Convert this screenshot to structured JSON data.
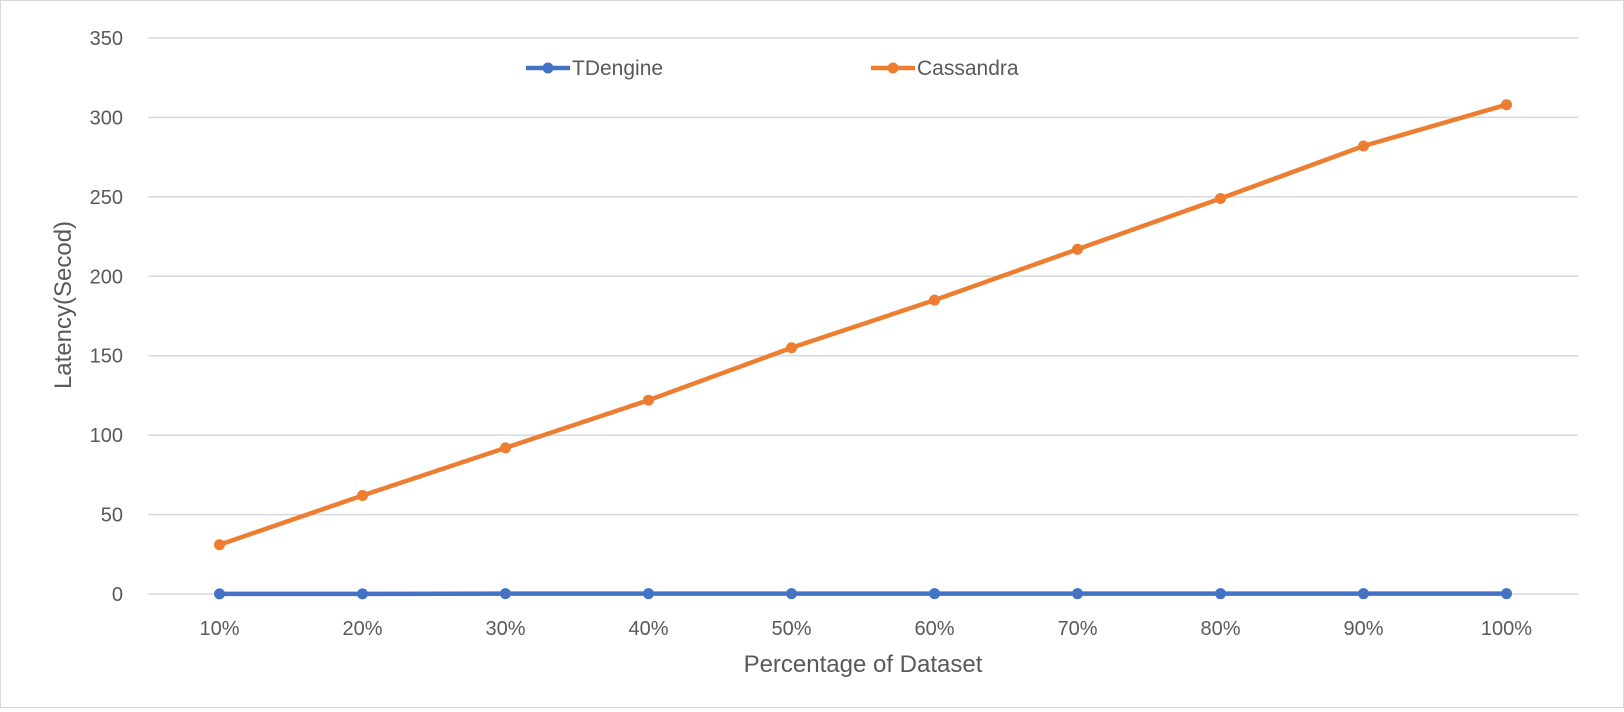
{
  "chart_data": {
    "type": "line",
    "categories": [
      "10%",
      "20%",
      "30%",
      "40%",
      "50%",
      "60%",
      "70%",
      "80%",
      "90%",
      "100%"
    ],
    "series": [
      {
        "name": "TDengine",
        "color": "#4472C4",
        "values": [
          0.1,
          0.1,
          0.2,
          0.2,
          0.2,
          0.2,
          0.2,
          0.2,
          0.2,
          0.2
        ]
      },
      {
        "name": "Cassandra",
        "color": "#ED7D31",
        "values": [
          31,
          62,
          92,
          122,
          155,
          185,
          217,
          249,
          282,
          308
        ]
      }
    ],
    "title": "",
    "xlabel": "Percentage of Dataset",
    "ylabel": "Latency(Secod)",
    "ylim": [
      0,
      350
    ],
    "yticks": [
      0,
      50,
      100,
      150,
      200,
      250,
      300,
      350
    ],
    "grid": true,
    "legend_position": "top-center"
  }
}
